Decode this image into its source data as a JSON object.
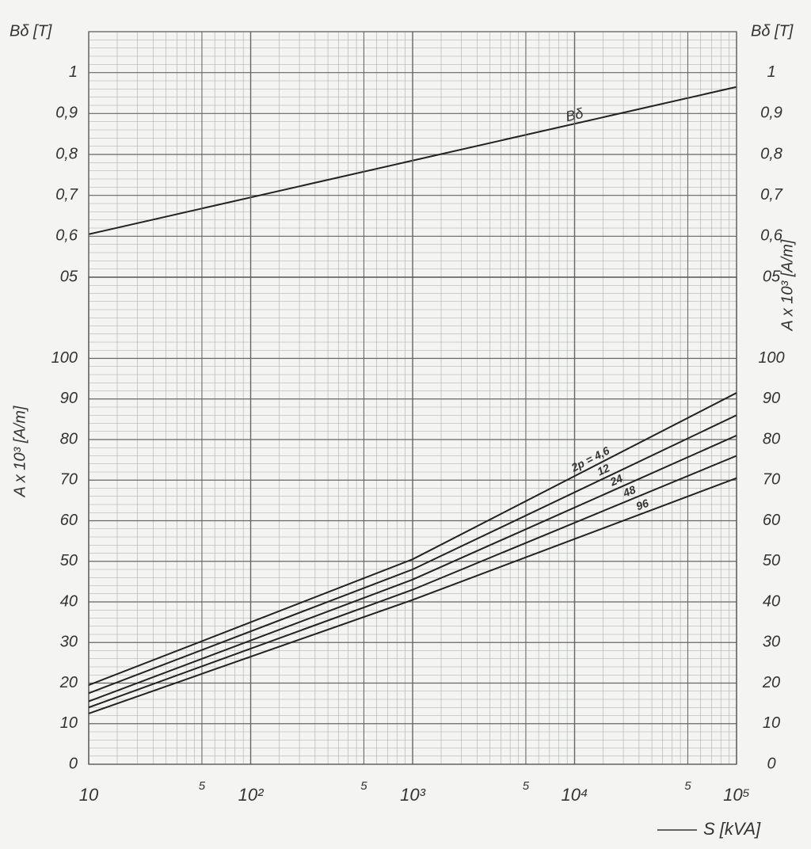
{
  "chart_data": [
    {
      "type": "line",
      "ylabel": "Bδ [T]",
      "xscale": "log",
      "xlim": [
        10,
        100000
      ],
      "ylim": [
        0.5,
        1.1
      ],
      "yticks": [
        {
          "value": 0.5,
          "label": "05"
        },
        {
          "value": 0.6,
          "label": "0,6"
        },
        {
          "value": 0.7,
          "label": "0,7"
        },
        {
          "value": 0.8,
          "label": "0,8"
        },
        {
          "value": 0.9,
          "label": "0,9"
        },
        1
      ],
      "x": [
        10,
        100000
      ],
      "series": [
        {
          "name": "Bδ",
          "color": "#222222",
          "values": [
            0.605,
            0.965
          ]
        }
      ],
      "grid": true
    },
    {
      "type": "line",
      "ylabel": "A x 10³ [A/m]",
      "xlabel": "S [kVA]",
      "xscale": "log",
      "xlim": [
        10,
        100000
      ],
      "xticks": [
        {
          "value": 10,
          "label": "10"
        },
        {
          "value": 50,
          "label": "5"
        },
        {
          "value": 100,
          "label": "10²"
        },
        {
          "value": 500,
          "label": "5"
        },
        {
          "value": 1000,
          "label": "10³"
        },
        {
          "value": 5000,
          "label": "5"
        },
        {
          "value": 10000,
          "label": "10⁴"
        },
        {
          "value": 50000,
          "label": "5"
        },
        {
          "value": 100000,
          "label": "10⁵"
        }
      ],
      "ylim": [
        0,
        120
      ],
      "yticks": [
        0,
        10,
        20,
        30,
        40,
        50,
        60,
        70,
        80,
        90,
        100
      ],
      "x": [
        10,
        1000,
        100000
      ],
      "series": [
        {
          "name": "2p = 4,6",
          "color": "#222222",
          "values": [
            19.5,
            50.5,
            91.5
          ]
        },
        {
          "name": "12",
          "color": "#222222",
          "values": [
            17.5,
            48,
            86
          ]
        },
        {
          "name": "24",
          "color": "#222222",
          "values": [
            15.5,
            45.5,
            81
          ]
        },
        {
          "name": "48",
          "color": "#222222",
          "values": [
            14,
            43,
            76
          ]
        },
        {
          "name": "96",
          "color": "#222222",
          "values": [
            12.5,
            40.5,
            70.5
          ]
        }
      ],
      "grid": true
    }
  ]
}
